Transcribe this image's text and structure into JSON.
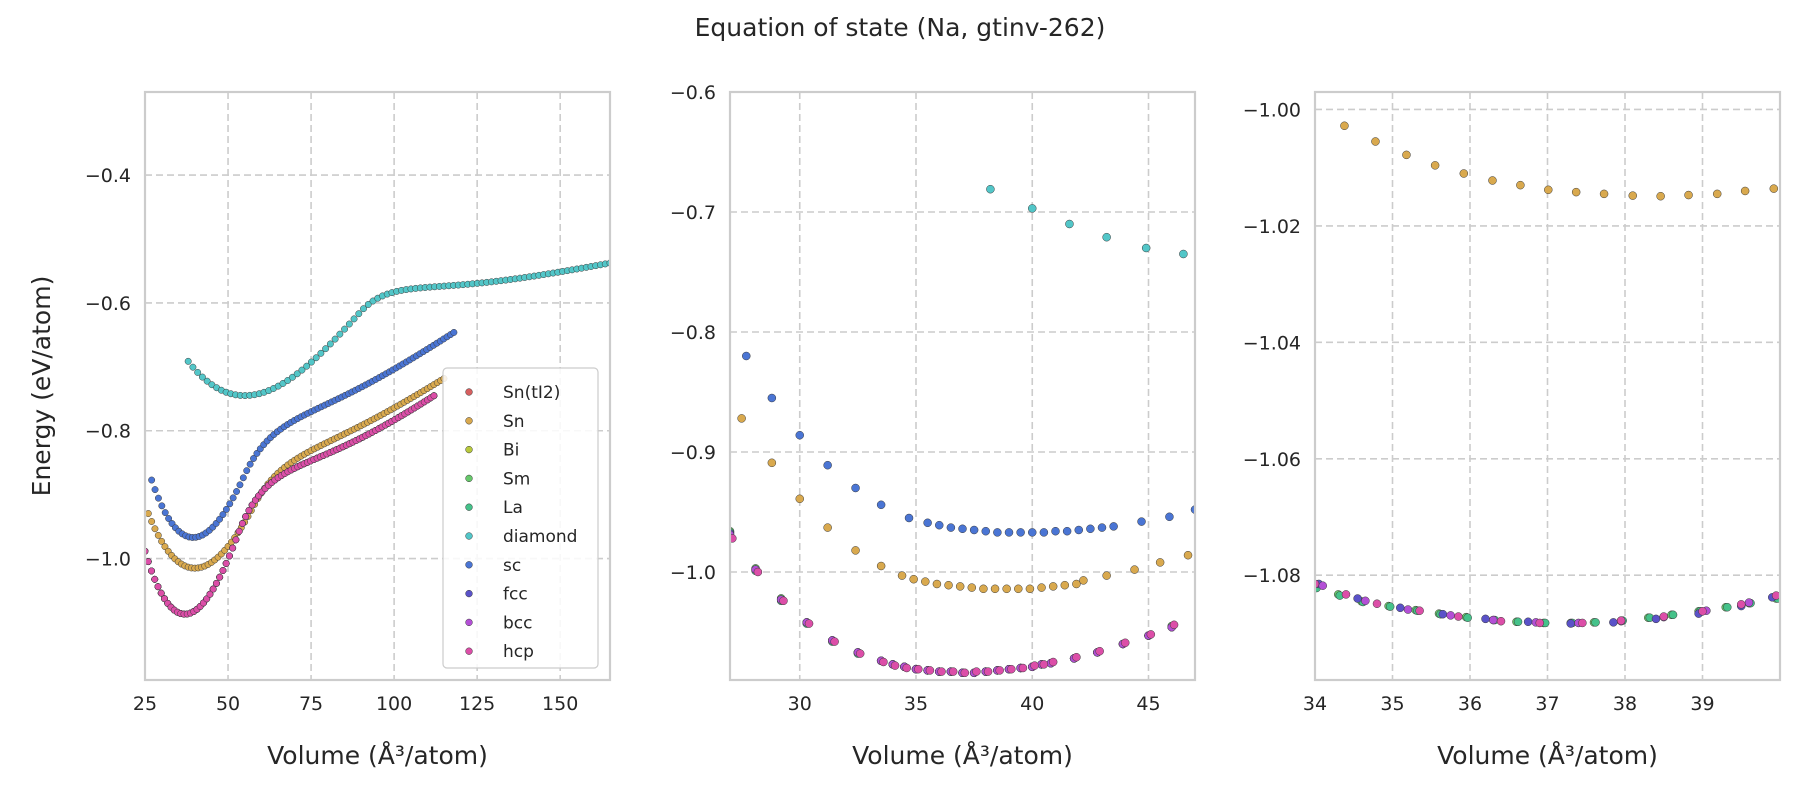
{
  "figure": {
    "title": "Equation of state (Na, gtinv-262)"
  },
  "colors": {
    "Sn(tI2)": "#d65f5f",
    "Sn": "#d9a94e",
    "Bi": "#b8c93c",
    "Sm": "#66c86a",
    "La": "#45c28a",
    "diamond": "#52c6c8",
    "sc": "#4a75d4",
    "fcc": "#5a52c8",
    "bcc": "#b34fd6",
    "hcp": "#dc4ea8"
  },
  "chart_data": [
    {
      "type": "scatter",
      "title": "",
      "xlabel": "Volume (Å³/atom)",
      "ylabel": "Energy (eV/atom)",
      "xlim": [
        25,
        165
      ],
      "ylim": [
        -1.19,
        -0.27
      ],
      "xticks": [
        25,
        50,
        75,
        100,
        125,
        150
      ],
      "yticks": [
        -1.0,
        -0.8,
        -0.6,
        -0.4
      ],
      "xtick_labels": [
        "25",
        "50",
        "75",
        "100",
        "125",
        "150"
      ],
      "ytick_labels": [
        "−1.0",
        "−0.8",
        "−0.6",
        "−0.4"
      ],
      "grid": true,
      "legend": {
        "placement": "lower-right",
        "entries": [
          "Sn(tI2)",
          "Sn",
          "Bi",
          "Sm",
          "La",
          "diamond",
          "sc",
          "fcc",
          "bcc",
          "hcp"
        ]
      },
      "series": [
        {
          "name": "diamond",
          "curve": {
            "kind": "eos",
            "E0": -0.745,
            "V0": 55,
            "B": 0.00016,
            "a": -1.5e-06,
            "c": 0.001,
            "linear_from": 90,
            "vmin": 38,
            "vmax": 165,
            "n": 90
          }
        },
        {
          "name": "Sn",
          "curve": {
            "kind": "eos",
            "E0": -1.015,
            "V0": 40,
            "B": 0.00038,
            "a": -4e-06,
            "c": 0.0034,
            "linear_from": 58,
            "vmin": 26,
            "vmax": 115,
            "n": 90
          }
        },
        {
          "name": "sc",
          "curve": {
            "kind": "eos",
            "E0": -0.967,
            "V0": 39.5,
            "B": 0.0005,
            "a": -6e-06,
            "c": 0.0035,
            "linear_from": 55,
            "vmin": 27,
            "vmax": 118,
            "n": 90
          }
        },
        {
          "name": "Sm",
          "curve": {
            "kind": "eos",
            "E0": -1.087,
            "V0": 37,
            "B": 0.0006,
            "a": -7e-06,
            "c": 0.0036,
            "linear_from": 53,
            "vmin": 25,
            "vmax": 112,
            "n": 90
          }
        },
        {
          "name": "La",
          "curve": {
            "kind": "eos",
            "E0": -1.087,
            "V0": 37,
            "B": 0.0006,
            "a": -7e-06,
            "c": 0.0036,
            "linear_from": 53,
            "vmin": 25,
            "vmax": 112,
            "n": 90
          }
        },
        {
          "name": "fcc",
          "curve": {
            "kind": "eos",
            "E0": -1.087,
            "V0": 37,
            "B": 0.0006,
            "a": -7e-06,
            "c": 0.0036,
            "linear_from": 53,
            "vmin": 25,
            "vmax": 112,
            "n": 90
          }
        },
        {
          "name": "bcc",
          "curve": {
            "kind": "eos",
            "E0": -1.087,
            "V0": 37,
            "B": 0.0006,
            "a": -7e-06,
            "c": 0.0036,
            "linear_from": 53,
            "vmin": 25,
            "vmax": 112,
            "n": 90
          }
        },
        {
          "name": "hcp",
          "curve": {
            "kind": "eos",
            "E0": -1.087,
            "V0": 37,
            "B": 0.0006,
            "a": -7e-06,
            "c": 0.0036,
            "linear_from": 53,
            "vmin": 25,
            "vmax": 112,
            "n": 90
          }
        }
      ]
    },
    {
      "type": "scatter",
      "title": "",
      "xlabel": "Volume (Å³/atom)",
      "ylabel": "",
      "xlim": [
        27,
        47
      ],
      "ylim": [
        -1.09,
        -0.6
      ],
      "xticks": [
        30,
        35,
        40,
        45
      ],
      "yticks": [
        -1.0,
        -0.9,
        -0.8,
        -0.7,
        -0.6
      ],
      "xtick_labels": [
        "30",
        "35",
        "40",
        "45"
      ],
      "ytick_labels": [
        "−1.0",
        "−0.9",
        "−0.8",
        "−0.7",
        "−0.6"
      ],
      "grid": true,
      "series": [
        {
          "name": "diamond",
          "x": [
            38.2,
            40.0,
            41.6,
            43.2,
            44.9,
            46.5
          ],
          "y": [
            -0.681,
            -0.697,
            -0.71,
            -0.721,
            -0.73,
            -0.735
          ]
        },
        {
          "name": "sc",
          "x": [
            27.7,
            28.8,
            30.0,
            31.2,
            32.4,
            33.5,
            34.7,
            35.5,
            36.0,
            36.5,
            37.0,
            37.5,
            38.0,
            38.5,
            39.0,
            39.5,
            40.0,
            40.5,
            41.0,
            41.5,
            42.0,
            42.5,
            43.0,
            43.5,
            44.7,
            45.9,
            47.0
          ],
          "y": [
            -0.82,
            -0.855,
            -0.886,
            -0.911,
            -0.93,
            -0.944,
            -0.955,
            -0.959,
            -0.961,
            -0.963,
            -0.964,
            -0.965,
            -0.966,
            -0.967,
            -0.967,
            -0.967,
            -0.967,
            -0.967,
            -0.966,
            -0.966,
            -0.965,
            -0.964,
            -0.963,
            -0.962,
            -0.958,
            -0.954,
            -0.948
          ]
        },
        {
          "name": "Sn",
          "x": [
            27.5,
            28.8,
            30.0,
            31.2,
            32.4,
            33.5,
            34.4,
            34.9,
            35.4,
            35.9,
            36.4,
            36.9,
            37.4,
            37.9,
            38.4,
            38.9,
            39.4,
            39.9,
            40.4,
            40.9,
            41.4,
            41.9,
            42.2,
            43.2,
            44.4,
            45.5,
            46.7
          ],
          "y": [
            -0.872,
            -0.909,
            -0.939,
            -0.963,
            -0.982,
            -0.995,
            -1.003,
            -1.006,
            -1.008,
            -1.01,
            -1.011,
            -1.012,
            -1.013,
            -1.014,
            -1.014,
            -1.014,
            -1.014,
            -1.014,
            -1.013,
            -1.012,
            -1.011,
            -1.01,
            -1.007,
            -1.003,
            -0.998,
            -0.992,
            -0.986
          ]
        },
        {
          "name": "Sm",
          "x": [
            27.0,
            28.1,
            29.2,
            30.3,
            31.4,
            32.5,
            33.5,
            34.0,
            34.5,
            35.0,
            35.5,
            36.0,
            36.5,
            37.0,
            37.5,
            38.0,
            38.5,
            39.0,
            39.5,
            40.0,
            40.4,
            40.8,
            41.8,
            42.8,
            43.9,
            45.0,
            46.0
          ],
          "y": [
            -0.966,
            -0.997,
            -1.022,
            -1.042,
            -1.057,
            -1.067,
            -1.074,
            -1.077,
            -1.079,
            -1.081,
            -1.082,
            -1.083,
            -1.083,
            -1.084,
            -1.084,
            -1.083,
            -1.082,
            -1.081,
            -1.08,
            -1.079,
            -1.077,
            -1.076,
            -1.072,
            -1.067,
            -1.06,
            -1.053,
            -1.045
          ]
        },
        {
          "name": "La",
          "x": [
            27.0,
            28.1,
            29.2,
            30.3,
            31.4,
            32.5,
            33.5,
            34.0,
            34.5,
            35.0,
            35.5,
            36.0,
            36.5,
            37.0,
            37.5,
            38.0,
            38.5,
            39.0,
            39.5,
            40.0,
            40.4,
            40.8,
            41.8,
            42.8,
            43.9,
            45.0,
            46.0
          ],
          "y": [
            -0.967,
            -0.999,
            -1.024,
            -1.043,
            -1.058,
            -1.068,
            -1.074,
            -1.077,
            -1.079,
            -1.081,
            -1.082,
            -1.083,
            -1.083,
            -1.084,
            -1.084,
            -1.083,
            -1.082,
            -1.081,
            -1.08,
            -1.079,
            -1.077,
            -1.076,
            -1.072,
            -1.067,
            -1.06,
            -1.053,
            -1.046
          ]
        },
        {
          "name": "fcc",
          "x": [
            27.0,
            28.1,
            29.2,
            30.3,
            31.4,
            32.5,
            33.5,
            34.0,
            34.5,
            35.0,
            35.5,
            36.0,
            36.5,
            37.0,
            37.5,
            38.0,
            38.5,
            39.0,
            39.5,
            40.0,
            40.4,
            40.8,
            41.8,
            42.8,
            43.9,
            45.0,
            46.0
          ],
          "y": [
            -0.968,
            -0.998,
            -1.023,
            -1.042,
            -1.057,
            -1.067,
            -1.074,
            -1.077,
            -1.079,
            -1.081,
            -1.082,
            -1.083,
            -1.083,
            -1.084,
            -1.084,
            -1.083,
            -1.082,
            -1.081,
            -1.08,
            -1.079,
            -1.077,
            -1.076,
            -1.072,
            -1.067,
            -1.06,
            -1.053,
            -1.046
          ]
        },
        {
          "name": "bcc",
          "x": [
            27.0,
            28.1,
            29.2,
            30.3,
            31.4,
            32.5,
            33.5,
            34.0,
            34.5,
            35.0,
            35.5,
            36.0,
            36.5,
            37.0,
            37.5,
            38.0,
            38.5,
            39.0,
            39.5,
            40.0,
            40.4,
            40.8,
            41.8,
            42.8,
            43.9,
            45.0,
            46.0
          ],
          "y": [
            -0.969,
            -0.998,
            -1.023,
            -1.042,
            -1.057,
            -1.067,
            -1.074,
            -1.077,
            -1.079,
            -1.081,
            -1.082,
            -1.083,
            -1.083,
            -1.084,
            -1.084,
            -1.083,
            -1.082,
            -1.081,
            -1.08,
            -1.079,
            -1.077,
            -1.076,
            -1.072,
            -1.067,
            -1.06,
            -1.053,
            -1.046
          ]
        },
        {
          "name": "hcp",
          "x": [
            27.1,
            28.2,
            29.3,
            30.4,
            31.5,
            32.6,
            33.6,
            34.1,
            34.6,
            35.1,
            35.6,
            36.1,
            36.6,
            37.1,
            37.6,
            38.1,
            38.6,
            39.1,
            39.6,
            40.1,
            40.5,
            40.9,
            41.9,
            42.9,
            44.0,
            45.1,
            46.1
          ],
          "y": [
            -0.972,
            -1.0,
            -1.024,
            -1.043,
            -1.058,
            -1.068,
            -1.075,
            -1.078,
            -1.08,
            -1.081,
            -1.082,
            -1.083,
            -1.083,
            -1.084,
            -1.083,
            -1.083,
            -1.082,
            -1.081,
            -1.08,
            -1.078,
            -1.077,
            -1.075,
            -1.071,
            -1.066,
            -1.059,
            -1.052,
            -1.044
          ]
        }
      ]
    },
    {
      "type": "scatter",
      "title": "",
      "xlabel": "Volume (Å³/atom)",
      "ylabel": "",
      "xlim": [
        34,
        40
      ],
      "ylim": [
        -1.098,
        -0.997
      ],
      "xticks": [
        34,
        35,
        36,
        37,
        38,
        39
      ],
      "yticks": [
        -1.08,
        -1.06,
        -1.04,
        -1.02,
        -1.0
      ],
      "xtick_labels": [
        "34",
        "35",
        "36",
        "37",
        "38",
        "39"
      ],
      "ytick_labels": [
        "−1.08",
        "−1.06",
        "−1.04",
        "−1.02",
        "−1.00"
      ],
      "grid": true,
      "series": [
        {
          "name": "Sn",
          "x": [
            34.38,
            34.78,
            35.18,
            35.55,
            35.92,
            36.29,
            36.65,
            37.01,
            37.37,
            37.73,
            38.1,
            38.46,
            38.82,
            39.19,
            39.55,
            39.92
          ],
          "y": [
            -1.0028,
            -1.0055,
            -1.0078,
            -1.0096,
            -1.011,
            -1.0122,
            -1.013,
            -1.0138,
            -1.0142,
            -1.0145,
            -1.0148,
            -1.0149,
            -1.0147,
            -1.0145,
            -1.014,
            -1.0136
          ]
        },
        {
          "name": "Sm",
          "x": [
            34.0,
            34.3,
            34.6,
            34.95,
            35.3,
            35.6,
            35.95,
            36.3,
            36.6,
            36.95,
            37.3,
            37.6,
            37.95,
            38.3,
            38.6,
            38.95,
            39.3,
            39.6,
            39.95
          ],
          "y": [
            -1.082,
            -1.0833,
            -1.0845,
            -1.0853,
            -1.086,
            -1.0866,
            -1.0872,
            -1.0877,
            -1.088,
            -1.0882,
            -1.0882,
            -1.0881,
            -1.0878,
            -1.0873,
            -1.0868,
            -1.0862,
            -1.0855,
            -1.0848,
            -1.084
          ]
        },
        {
          "name": "La",
          "x": [
            34.02,
            34.32,
            34.62,
            34.97,
            35.32,
            35.62,
            35.97,
            36.32,
            36.62,
            36.97,
            37.32,
            37.62,
            37.97,
            38.32,
            38.62,
            38.97,
            39.32,
            39.62,
            39.97
          ],
          "y": [
            -1.0822,
            -1.0835,
            -1.0846,
            -1.0854,
            -1.0861,
            -1.0867,
            -1.0873,
            -1.0877,
            -1.088,
            -1.0882,
            -1.0882,
            -1.0881,
            -1.0878,
            -1.0873,
            -1.0868,
            -1.0862,
            -1.0855,
            -1.0848,
            -1.084
          ]
        },
        {
          "name": "fcc",
          "x": [
            34.05,
            34.55,
            35.1,
            35.65,
            36.2,
            36.75,
            37.3,
            37.85,
            38.4,
            38.95,
            39.5,
            39.9
          ],
          "y": [
            -1.0815,
            -1.084,
            -1.0856,
            -1.0867,
            -1.0875,
            -1.088,
            -1.0883,
            -1.0881,
            -1.0875,
            -1.0866,
            -1.0853,
            -1.0838
          ]
        },
        {
          "name": "bcc",
          "x": [
            34.1,
            34.65,
            35.2,
            35.75,
            36.3,
            36.85,
            37.4,
            37.95,
            38.5,
            39.05,
            39.6
          ],
          "y": [
            -1.0818,
            -1.0844,
            -1.0859,
            -1.0869,
            -1.0877,
            -1.0881,
            -1.0882,
            -1.0879,
            -1.0872,
            -1.0861,
            -1.0847
          ]
        },
        {
          "name": "hcp",
          "x": [
            34.0,
            34.4,
            34.8,
            35.35,
            35.85,
            36.4,
            36.9,
            37.45,
            37.95,
            38.5,
            39.0,
            39.5,
            39.95
          ],
          "y": [
            -1.0815,
            -1.0833,
            -1.0849,
            -1.0861,
            -1.0871,
            -1.0879,
            -1.0882,
            -1.0882,
            -1.0878,
            -1.0871,
            -1.0862,
            -1.085,
            -1.0835
          ]
        }
      ]
    }
  ]
}
